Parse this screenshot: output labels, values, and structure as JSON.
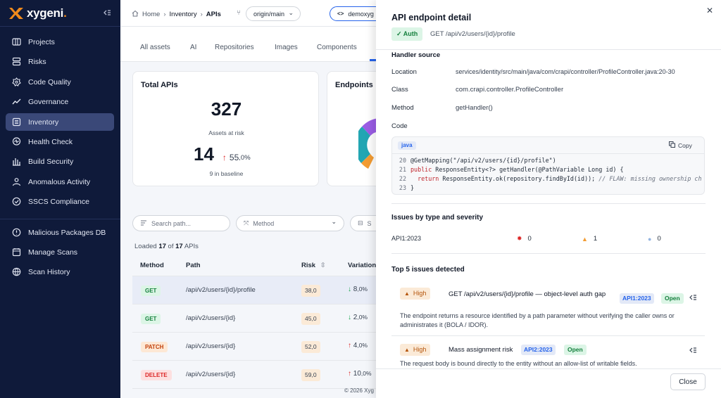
{
  "brand": {
    "name": "xygeni",
    "dot": ".",
    "accent": "#f08a1c",
    "sidebar_bg": "#0f1a3a"
  },
  "sidebar": {
    "collapse_icon": "sidebar-collapse-icon",
    "items": [
      {
        "label": "Projects",
        "icon": "projects-icon"
      },
      {
        "label": "Risks",
        "icon": "risks-icon"
      },
      {
        "label": "Code Quality",
        "icon": "code-quality-icon"
      },
      {
        "label": "Governance",
        "icon": "governance-icon"
      },
      {
        "label": "Inventory",
        "icon": "inventory-icon",
        "active": true
      },
      {
        "label": "Health Check",
        "icon": "health-check-icon"
      },
      {
        "label": "Build Security",
        "icon": "build-security-icon"
      },
      {
        "label": "Anomalous Activity",
        "icon": "anomalous-activity-icon"
      },
      {
        "label": "SSCS Compliance",
        "icon": "compliance-icon"
      }
    ],
    "items2": [
      {
        "label": "Malicious Packages DB",
        "icon": "malicious-packages-icon"
      },
      {
        "label": "Manage Scans",
        "icon": "manage-scans-icon"
      },
      {
        "label": "Scan History",
        "icon": "scan-history-icon"
      }
    ]
  },
  "breadcrumb": {
    "home": "Home",
    "inventory": "Inventory",
    "apis": "APIs"
  },
  "branch": "origin/main",
  "repo": "demoxyg",
  "tabs": [
    "All assets",
    "AI",
    "Repositories",
    "Images",
    "Components"
  ],
  "total_card": {
    "title": "Total APIs",
    "total": "327",
    "subtitle": "Assets at risk",
    "at_risk": "14",
    "change": "55",
    "change_decimal": ",0%",
    "baseline": "9 in baseline"
  },
  "endpoints_card": {
    "title": "Endpoints"
  },
  "filters": {
    "search_placeholder": "Search path...",
    "method_label": "Method",
    "third_label": "S"
  },
  "loaded": {
    "prefix": "Loaded ",
    "count": "17",
    "mid": " of ",
    "total": "17",
    "suffix": " APIs"
  },
  "table": {
    "headers": {
      "method": "Method",
      "path": "Path",
      "risk": "Risk",
      "variation": "Variation"
    },
    "rows": [
      {
        "method": "GET",
        "path": "/api/v2/users/{id}/profile",
        "risk": "38,0",
        "var": "8",
        "var_dec": ",0%",
        "dir": "down"
      },
      {
        "method": "GET",
        "path": "/api/v2/users/{id}",
        "risk": "45,0",
        "var": "2",
        "var_dec": ",0%",
        "dir": "down"
      },
      {
        "method": "PATCH",
        "path": "/api/v2/users/{id}",
        "risk": "52,0",
        "var": "4",
        "var_dec": ",0%",
        "dir": "up"
      },
      {
        "method": "DELETE",
        "path": "/api/v2/users/{id}",
        "risk": "59,0",
        "var": "10",
        "var_dec": ",0%",
        "dir": "up"
      }
    ]
  },
  "footer": "© 2026 Xyg",
  "panel": {
    "title": "API endpoint detail",
    "auth": "Auth",
    "method_path": "GET /api/v2/users/{id}/profile",
    "handler_heading": "Handler source",
    "location_label": "Location",
    "location": "services/identity/src/main/java/com/crapi/controller/ProfileController.java:20-30",
    "class_label": "Class",
    "class": "com.crapi.controller.ProfileController",
    "method_label": "Method",
    "method": "getHandler()",
    "code_label": "Code",
    "lang": "java",
    "copy": "Copy",
    "code_lines": [
      {
        "n": "20",
        "parts": [
          {
            "t": "@GetMapping(\"/api/v2/users/{id}/profile\")",
            "c": ""
          }
        ]
      },
      {
        "n": "21",
        "parts": [
          {
            "t": "public",
            "c": "kw"
          },
          {
            "t": " ResponseEntity<?> getHandler(@PathVariable Long id) {",
            "c": ""
          }
        ]
      },
      {
        "n": "22",
        "parts": [
          {
            "t": "return",
            "c": "kw"
          },
          {
            "t": " ResponseEntity.ok(repository.findById(id)); ",
            "c": ""
          },
          {
            "t": "// FLAW: missing ownership ch",
            "c": "cm"
          }
        ]
      },
      {
        "n": "23",
        "parts": [
          {
            "t": "}",
            "c": ""
          }
        ]
      }
    ],
    "issues_heading": "Issues by type and severity",
    "issue_type": "API1:2023",
    "critical": "0",
    "high": "1",
    "low": "0",
    "top_heading": "Top 5 issues detected",
    "issues": [
      {
        "severity": "High",
        "title": "GET /api/v2/users/{id}/profile — object-level auth gap",
        "tag": "API1:2023",
        "status": "Open",
        "desc": "The endpoint returns a resource identified by a path parameter without verifying the caller owns or administrates it (BOLA / IDOR)."
      },
      {
        "severity": "High",
        "title": "Mass assignment risk",
        "tag": "API2:2023",
        "status": "Open",
        "desc": "The request body is bound directly to the entity without an allow-list of writable fields."
      }
    ],
    "close": "Close"
  }
}
